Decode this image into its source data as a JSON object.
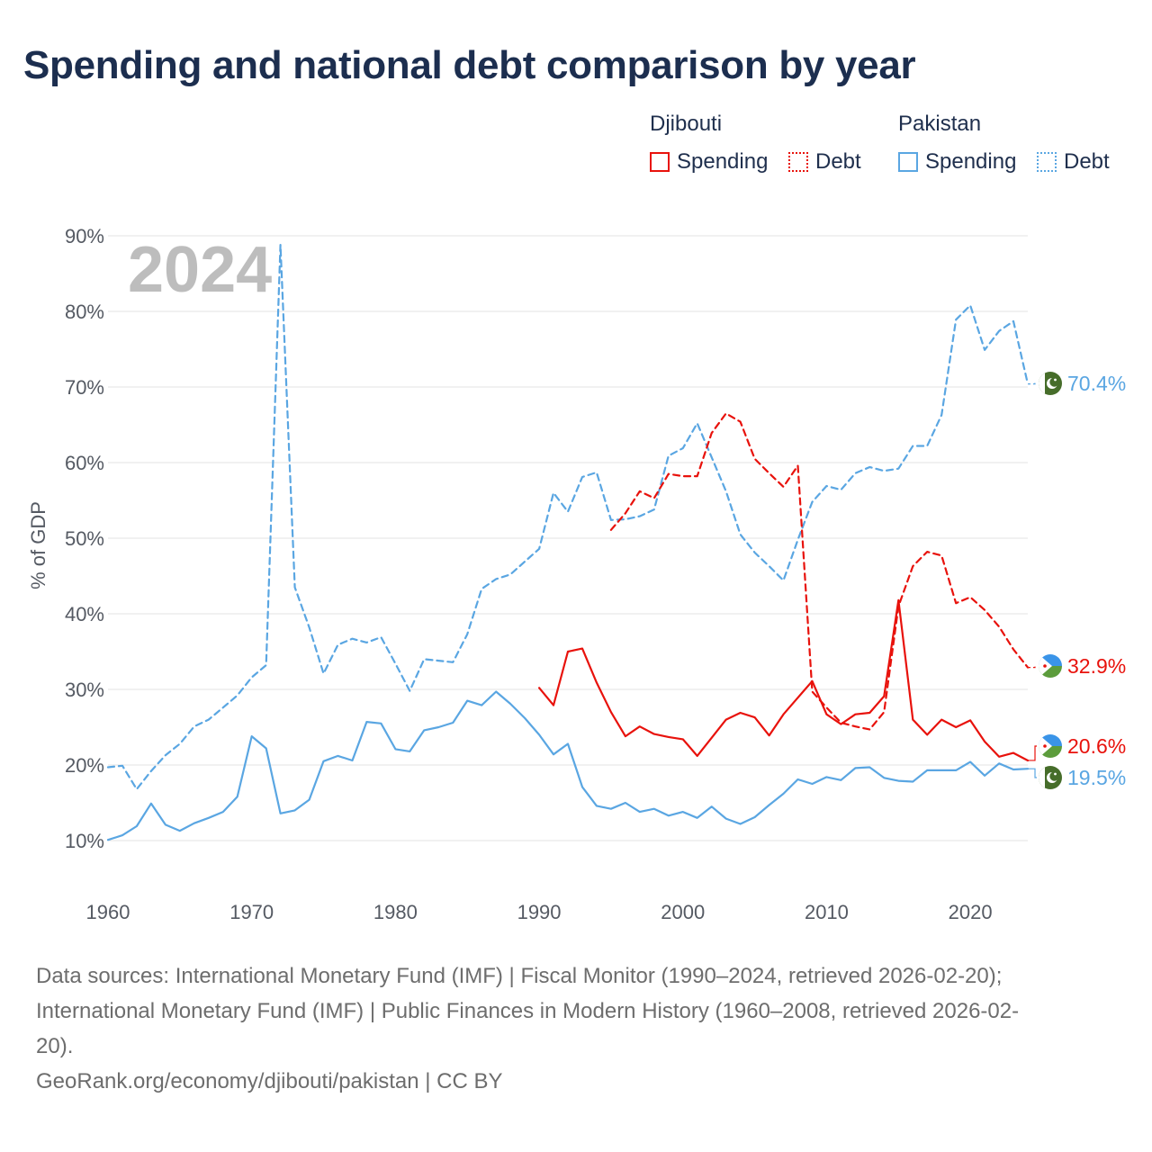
{
  "title": "Spending and national debt comparison by year",
  "legend": {
    "groups": [
      {
        "name": "Djibouti",
        "spending_label": "Spending",
        "debt_label": "Debt"
      },
      {
        "name": "Pakistan",
        "spending_label": "Spending",
        "debt_label": "Debt"
      }
    ]
  },
  "colors": {
    "djibouti": "#e8120c",
    "pakistan": "#5aa6e2",
    "grid": "#e3e3e3"
  },
  "icons": {
    "djibouti_flag": "djibouti-flag-icon",
    "pakistan_flag": "pakistan-flag-icon"
  },
  "chart_data": {
    "type": "line",
    "year_watermark": "2024",
    "ylabel": "% of GDP",
    "xlabel": "",
    "xlim": [
      1960,
      2024
    ],
    "ylim": [
      0,
      90
    ],
    "y_ticks": [
      "10%",
      "20%",
      "30%",
      "40%",
      "50%",
      "60%",
      "70%",
      "80%",
      "90%"
    ],
    "x_ticks": [
      "1960",
      "1970",
      "1980",
      "1990",
      "2000",
      "2010",
      "2020"
    ],
    "series": [
      {
        "name": "Pakistan Debt",
        "country": "Pakistan",
        "metric": "Debt",
        "style": "dashed",
        "color": "#5aa6e2",
        "start_year": 1960,
        "end_label": "70.4%",
        "values": [
          19.7,
          19.9,
          16.8,
          19.2,
          21.3,
          22.8,
          25.1,
          26.0,
          27.6,
          29.2,
          31.6,
          33.2,
          88.8,
          43.5,
          38.2,
          32.1,
          35.9,
          36.7,
          36.2,
          36.9,
          33.4,
          29.8,
          34.0,
          33.8,
          33.6,
          37.3,
          43.3,
          44.6,
          45.2,
          46.9,
          48.6,
          56.0,
          53.5,
          58.1,
          58.7,
          52.4,
          52.5,
          52.9,
          53.8,
          60.9,
          61.9,
          65.2,
          60.7,
          56.2,
          50.5,
          48.1,
          46.3,
          44.4,
          49.8,
          54.8,
          56.9,
          56.4,
          58.6,
          59.4,
          58.9,
          59.2,
          62.2,
          62.2,
          66.3,
          78.9,
          80.8,
          74.9,
          77.4,
          78.7,
          70.4
        ]
      },
      {
        "name": "Djibouti Debt",
        "country": "Djibouti",
        "metric": "Debt",
        "style": "dashed",
        "color": "#e8120c",
        "start_year": 1995,
        "end_label": "32.9%",
        "values": [
          51.1,
          53.3,
          56.2,
          55.3,
          58.5,
          58.2,
          58.2,
          63.9,
          66.5,
          65.4,
          60.5,
          58.6,
          56.8,
          59.6,
          29.7,
          27.6,
          25.6,
          25.1,
          24.7,
          27.0,
          41.0,
          46.3,
          48.2,
          47.7,
          41.4,
          42.2,
          40.5,
          38.3,
          35.3,
          32.9
        ]
      },
      {
        "name": "Djibouti Spending",
        "country": "Djibouti",
        "metric": "Spending",
        "style": "solid",
        "color": "#e8120c",
        "start_year": 1990,
        "end_label": "20.6%",
        "values": [
          30.2,
          27.9,
          35.0,
          35.4,
          30.9,
          27.0,
          23.8,
          25.1,
          24.1,
          23.7,
          23.4,
          21.2,
          23.6,
          26.0,
          26.9,
          26.3,
          23.9,
          26.7,
          28.9,
          31.1,
          26.7,
          25.4,
          26.7,
          26.9,
          29.1,
          41.8,
          26.0,
          24.0,
          26.0,
          25.0,
          25.9,
          23.1,
          21.1,
          21.6,
          20.6
        ]
      },
      {
        "name": "Pakistan Spending",
        "country": "Pakistan",
        "metric": "Spending",
        "style": "solid",
        "color": "#5aa6e2",
        "start_year": 1960,
        "end_label": "19.5%",
        "values": [
          10.1,
          10.7,
          11.9,
          14.9,
          12.1,
          11.3,
          12.3,
          13.0,
          13.8,
          15.8,
          23.8,
          22.2,
          13.6,
          14.0,
          15.4,
          20.5,
          21.2,
          20.6,
          25.7,
          25.5,
          22.1,
          21.8,
          24.6,
          25.0,
          25.6,
          28.5,
          27.9,
          29.7,
          28.1,
          26.2,
          24.0,
          21.4,
          22.8,
          17.1,
          14.6,
          14.2,
          15.0,
          13.8,
          14.2,
          13.3,
          13.8,
          13.0,
          14.5,
          12.9,
          12.2,
          13.1,
          14.7,
          16.2,
          18.1,
          17.5,
          18.4,
          18.0,
          19.6,
          19.7,
          18.3,
          17.9,
          17.8,
          19.3,
          19.3,
          19.3,
          20.4,
          18.6,
          20.2,
          19.4,
          19.5
        ]
      }
    ]
  },
  "footer": {
    "sources_line1": "Data sources: International Monetary Fund (IMF) | Fiscal Monitor (1990–2024, retrieved 2026-02-20);",
    "sources_line2": "International Monetary Fund (IMF) | Public Finances in Modern History (1960–2008, retrieved 2026-02-",
    "sources_line3": "20).",
    "credit": "GeoRank.org/economy/djibouti/pakistan | CC BY"
  }
}
